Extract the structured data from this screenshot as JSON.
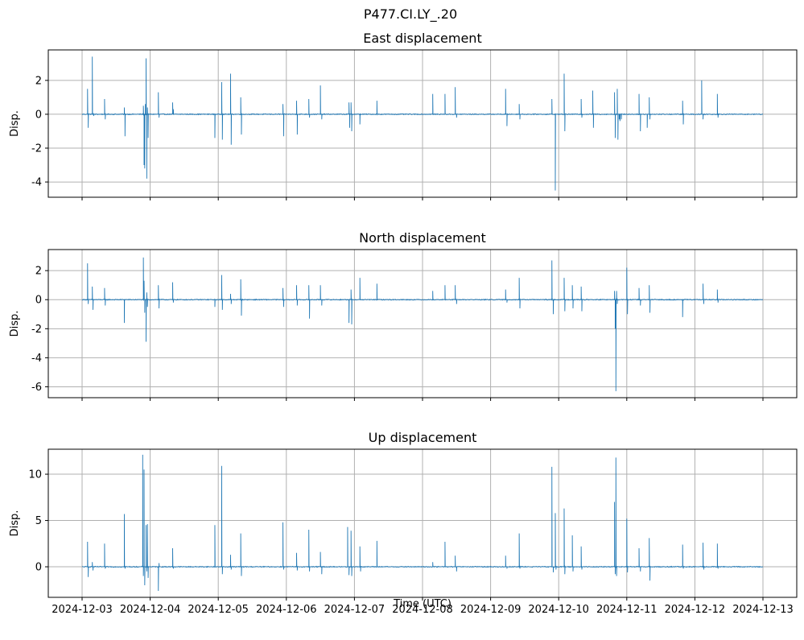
{
  "figure_title": "P477.CI.LY_.20",
  "line_color": "#1f77b4",
  "x_ticks": [
    "2024-12-03",
    "2024-12-04",
    "2024-12-05",
    "2024-12-06",
    "2024-12-07",
    "2024-12-08",
    "2024-12-09",
    "2024-12-10",
    "2024-12-11",
    "2024-12-12",
    "2024-12-13"
  ],
  "x_label": "Time (UTC)",
  "chart_data": [
    {
      "type": "line",
      "title": "East displacement",
      "ylabel": "Disp.",
      "xlim": [
        0,
        10
      ],
      "ylim": [
        -4.9,
        3.8
      ],
      "yticks": [
        -4,
        -2,
        0,
        2
      ],
      "grid": true,
      "spikes": [
        [
          0.08,
          1.5
        ],
        [
          0.09,
          -0.8
        ],
        [
          0.15,
          3.4
        ],
        [
          0.17,
          -0.1
        ],
        [
          0.33,
          0.9
        ],
        [
          0.34,
          -0.3
        ],
        [
          0.62,
          0.4
        ],
        [
          0.63,
          -1.3
        ],
        [
          0.9,
          0.5
        ],
        [
          0.91,
          -3.0
        ],
        [
          0.92,
          -3.2
        ],
        [
          0.93,
          0.6
        ],
        [
          0.94,
          3.3
        ],
        [
          0.95,
          -3.8
        ],
        [
          0.96,
          0.4
        ],
        [
          0.97,
          -1.4
        ],
        [
          1.12,
          1.3
        ],
        [
          1.13,
          -0.2
        ],
        [
          1.33,
          0.7
        ],
        [
          1.34,
          0.3
        ],
        [
          1.95,
          -1.4
        ],
        [
          2.05,
          1.9
        ],
        [
          2.06,
          -1.5
        ],
        [
          2.18,
          2.4
        ],
        [
          2.19,
          -1.8
        ],
        [
          2.33,
          1.0
        ],
        [
          2.34,
          -1.2
        ],
        [
          2.95,
          0.6
        ],
        [
          2.96,
          -1.3
        ],
        [
          3.15,
          0.8
        ],
        [
          3.16,
          -1.2
        ],
        [
          3.33,
          0.9
        ],
        [
          3.34,
          -0.2
        ],
        [
          3.5,
          1.7
        ],
        [
          3.52,
          -0.3
        ],
        [
          3.92,
          0.7
        ],
        [
          3.93,
          -0.8
        ],
        [
          3.95,
          0.7
        ],
        [
          3.96,
          -1.0
        ],
        [
          4.08,
          -0.6
        ],
        [
          4.33,
          0.8
        ],
        [
          5.15,
          1.2
        ],
        [
          5.33,
          1.2
        ],
        [
          5.48,
          1.6
        ],
        [
          5.5,
          -0.2
        ],
        [
          6.22,
          1.5
        ],
        [
          6.24,
          -0.7
        ],
        [
          6.42,
          0.6
        ],
        [
          6.43,
          -0.3
        ],
        [
          6.9,
          0.9
        ],
        [
          6.95,
          -4.5
        ],
        [
          7.08,
          2.4
        ],
        [
          7.09,
          -1.0
        ],
        [
          7.33,
          0.9
        ],
        [
          7.34,
          -0.2
        ],
        [
          7.5,
          1.4
        ],
        [
          7.51,
          -0.8
        ],
        [
          7.82,
          1.3
        ],
        [
          7.83,
          -1.4
        ],
        [
          7.86,
          1.5
        ],
        [
          7.87,
          -1.5
        ],
        [
          7.89,
          -0.3
        ],
        [
          7.9,
          -0.4
        ],
        [
          7.92,
          -0.3
        ],
        [
          8.18,
          1.2
        ],
        [
          8.2,
          -1.0
        ],
        [
          8.3,
          -0.8
        ],
        [
          8.33,
          1.0
        ],
        [
          8.34,
          -0.3
        ],
        [
          8.82,
          0.8
        ],
        [
          8.83,
          -0.6
        ],
        [
          9.1,
          2.0
        ],
        [
          9.12,
          -0.3
        ],
        [
          9.33,
          1.2
        ],
        [
          9.34,
          -0.2
        ]
      ]
    },
    {
      "type": "line",
      "title": "North displacement",
      "ylabel": "Disp.",
      "xlim": [
        0,
        10
      ],
      "ylim": [
        -6.75,
        3.45
      ],
      "yticks": [
        -6,
        -4,
        -2,
        0,
        2
      ],
      "grid": true,
      "spikes": [
        [
          0.08,
          2.5
        ],
        [
          0.09,
          -0.3
        ],
        [
          0.15,
          0.9
        ],
        [
          0.16,
          -0.7
        ],
        [
          0.33,
          0.8
        ],
        [
          0.34,
          -0.4
        ],
        [
          0.62,
          -1.6
        ],
        [
          0.9,
          2.9
        ],
        [
          0.91,
          1.3
        ],
        [
          0.92,
          -0.9
        ],
        [
          0.94,
          -2.9
        ],
        [
          0.95,
          0.5
        ],
        [
          0.96,
          -0.5
        ],
        [
          1.12,
          1.0
        ],
        [
          1.13,
          -0.6
        ],
        [
          1.33,
          1.2
        ],
        [
          1.34,
          -0.2
        ],
        [
          1.95,
          -0.5
        ],
        [
          2.05,
          1.7
        ],
        [
          2.06,
          -0.7
        ],
        [
          2.18,
          0.4
        ],
        [
          2.19,
          -0.3
        ],
        [
          2.33,
          1.4
        ],
        [
          2.34,
          -1.1
        ],
        [
          2.95,
          0.8
        ],
        [
          2.96,
          -0.5
        ],
        [
          3.15,
          1.0
        ],
        [
          3.16,
          -0.4
        ],
        [
          3.33,
          1.0
        ],
        [
          3.34,
          -1.3
        ],
        [
          3.5,
          1.0
        ],
        [
          3.52,
          -0.4
        ],
        [
          3.92,
          -1.6
        ],
        [
          3.95,
          0.7
        ],
        [
          3.96,
          -1.7
        ],
        [
          4.08,
          1.5
        ],
        [
          4.33,
          1.1
        ],
        [
          5.15,
          0.6
        ],
        [
          5.33,
          1.0
        ],
        [
          5.48,
          1.0
        ],
        [
          5.5,
          -0.3
        ],
        [
          6.22,
          0.7
        ],
        [
          6.24,
          -0.2
        ],
        [
          6.42,
          1.5
        ],
        [
          6.43,
          -0.6
        ],
        [
          6.9,
          2.7
        ],
        [
          6.92,
          -1.0
        ],
        [
          7.08,
          1.5
        ],
        [
          7.09,
          -0.8
        ],
        [
          7.2,
          1.0
        ],
        [
          7.21,
          -0.6
        ],
        [
          7.33,
          0.9
        ],
        [
          7.34,
          -0.8
        ],
        [
          7.82,
          0.6
        ],
        [
          7.83,
          -2.0
        ],
        [
          7.84,
          -6.3
        ],
        [
          7.85,
          0.6
        ],
        [
          7.86,
          -0.3
        ],
        [
          8.0,
          2.2
        ],
        [
          8.01,
          -1.0
        ],
        [
          8.18,
          0.8
        ],
        [
          8.2,
          -0.4
        ],
        [
          8.33,
          1.0
        ],
        [
          8.34,
          -0.9
        ],
        [
          8.82,
          -1.2
        ],
        [
          9.12,
          1.1
        ],
        [
          9.13,
          -0.3
        ],
        [
          9.33,
          0.7
        ],
        [
          9.34,
          -0.2
        ]
      ]
    },
    {
      "type": "line",
      "title": "Up displacement",
      "ylabel": "Disp.",
      "xlim": [
        0,
        10
      ],
      "ylim": [
        -3.3,
        12.7
      ],
      "yticks": [
        0,
        5,
        10
      ],
      "grid": true,
      "spikes": [
        [
          0.08,
          2.7
        ],
        [
          0.09,
          -1.1
        ],
        [
          0.15,
          0.5
        ],
        [
          0.16,
          -0.4
        ],
        [
          0.33,
          2.5
        ],
        [
          0.34,
          -0.2
        ],
        [
          0.62,
          5.7
        ],
        [
          0.63,
          -0.2
        ],
        [
          0.89,
          12.1
        ],
        [
          0.9,
          -1.0
        ],
        [
          0.91,
          10.5
        ],
        [
          0.92,
          -2.0
        ],
        [
          0.94,
          4.5
        ],
        [
          0.95,
          -0.5
        ],
        [
          0.96,
          4.6
        ],
        [
          0.97,
          -1.2
        ],
        [
          1.12,
          -2.6
        ],
        [
          1.13,
          0.4
        ],
        [
          1.33,
          2.0
        ],
        [
          1.34,
          -0.2
        ],
        [
          1.95,
          4.5
        ],
        [
          2.05,
          10.9
        ],
        [
          2.06,
          -0.8
        ],
        [
          2.18,
          1.3
        ],
        [
          2.19,
          -0.3
        ],
        [
          2.33,
          3.6
        ],
        [
          2.34,
          -1.0
        ],
        [
          2.95,
          4.8
        ],
        [
          2.96,
          -0.3
        ],
        [
          3.15,
          1.5
        ],
        [
          3.16,
          -0.4
        ],
        [
          3.33,
          4.0
        ],
        [
          3.34,
          -0.5
        ],
        [
          3.5,
          1.6
        ],
        [
          3.52,
          -0.8
        ],
        [
          3.9,
          4.3
        ],
        [
          3.92,
          -0.9
        ],
        [
          3.95,
          3.9
        ],
        [
          3.96,
          -1.0
        ],
        [
          4.08,
          2.2
        ],
        [
          4.09,
          -0.5
        ],
        [
          4.33,
          2.8
        ],
        [
          5.15,
          0.5
        ],
        [
          5.33,
          2.7
        ],
        [
          5.48,
          1.2
        ],
        [
          5.5,
          -0.5
        ],
        [
          6.22,
          1.2
        ],
        [
          6.24,
          -0.2
        ],
        [
          6.42,
          3.6
        ],
        [
          6.43,
          -0.2
        ],
        [
          6.9,
          10.8
        ],
        [
          6.92,
          -0.6
        ],
        [
          6.95,
          5.8
        ],
        [
          6.96,
          -0.3
        ],
        [
          7.08,
          6.3
        ],
        [
          7.09,
          -0.8
        ],
        [
          7.2,
          3.4
        ],
        [
          7.21,
          -0.5
        ],
        [
          7.33,
          2.2
        ],
        [
          7.34,
          -0.3
        ],
        [
          7.82,
          7.0
        ],
        [
          7.83,
          -0.8
        ],
        [
          7.84,
          11.8
        ],
        [
          7.85,
          -1.0
        ],
        [
          8.0,
          5.2
        ],
        [
          8.01,
          -0.6
        ],
        [
          8.18,
          2.0
        ],
        [
          8.2,
          -0.5
        ],
        [
          8.33,
          3.1
        ],
        [
          8.34,
          -1.5
        ],
        [
          8.82,
          2.4
        ],
        [
          8.83,
          -0.2
        ],
        [
          9.12,
          2.6
        ],
        [
          9.13,
          -0.3
        ],
        [
          9.33,
          2.5
        ],
        [
          9.34,
          -0.2
        ]
      ]
    }
  ]
}
